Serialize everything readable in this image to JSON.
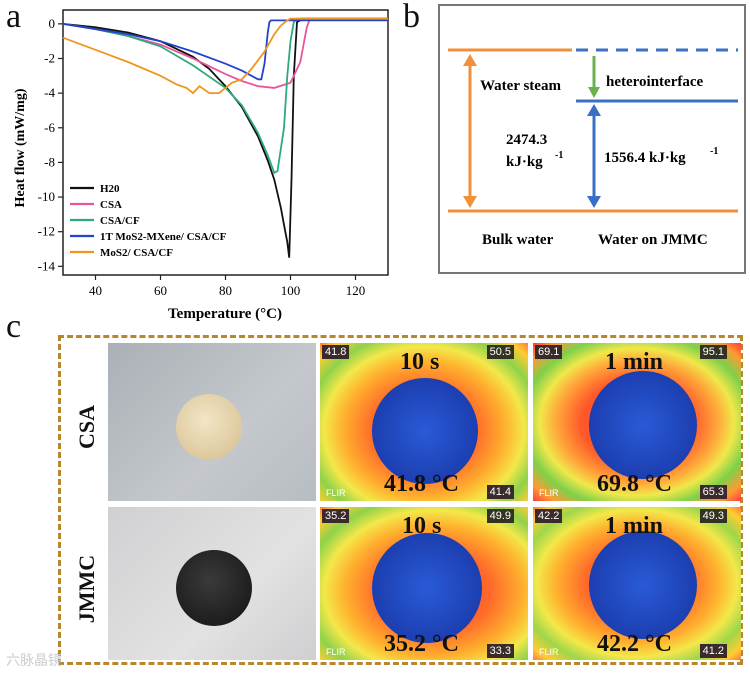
{
  "panels": {
    "a": "a",
    "b": "b",
    "c": "c"
  },
  "chart_data": {
    "type": "line",
    "title": "",
    "xlabel": "Temperature (°C)",
    "ylabel": "Heat flow (mW/mg)",
    "xlim": [
      30,
      130
    ],
    "ylim": [
      -14.5,
      0.8
    ],
    "xticks": [
      40,
      60,
      80,
      100,
      120
    ],
    "yticks": [
      0,
      -2,
      -4,
      -6,
      -8,
      -10,
      -12,
      -14
    ],
    "legend_position": "bottom-left",
    "series": [
      {
        "name": "H20",
        "color": "#111111",
        "x": [
          30,
          40,
          50,
          60,
          70,
          75,
          80,
          85,
          90,
          93,
          95,
          97,
          98,
          99,
          99.6,
          100.3,
          101,
          102,
          104,
          110,
          130
        ],
        "y": [
          0,
          -0.2,
          -0.5,
          -1.0,
          -1.9,
          -2.6,
          -3.6,
          -4.8,
          -6.5,
          -7.9,
          -9.0,
          -10.6,
          -11.6,
          -12.6,
          -13.5,
          -9.0,
          -3.0,
          0.1,
          0.3,
          0.3,
          0.3
        ]
      },
      {
        "name": "CSA",
        "color": "#e8559b",
        "x": [
          30,
          40,
          50,
          60,
          70,
          80,
          85,
          90,
          95,
          100,
          103,
          105,
          106,
          108,
          110,
          130
        ],
        "y": [
          0,
          -0.3,
          -0.7,
          -1.2,
          -2.0,
          -2.9,
          -3.3,
          -3.6,
          -3.7,
          -3.4,
          -2.2,
          -0.2,
          0.3,
          0.3,
          0.3,
          0.3
        ]
      },
      {
        "name": "CSA/CF",
        "color": "#2eaa7a",
        "x": [
          30,
          40,
          50,
          60,
          70,
          80,
          85,
          90,
          93,
          95,
          96,
          98,
          99,
          100,
          101,
          102,
          104,
          110,
          130
        ],
        "y": [
          0,
          -0.3,
          -0.7,
          -1.3,
          -2.4,
          -3.7,
          -4.7,
          -6.3,
          -7.6,
          -8.6,
          -8.5,
          -6.0,
          -3.0,
          -1.0,
          0.1,
          0.3,
          0.3,
          0.3,
          0.3
        ]
      },
      {
        "name": "1T MoS2-MXene/ CSA/CF",
        "color": "#2244cc",
        "x": [
          30,
          40,
          50,
          60,
          70,
          80,
          85,
          88,
          90,
          91,
          92,
          93,
          93.5,
          94,
          95,
          100,
          110,
          130
        ],
        "y": [
          0,
          -0.3,
          -0.6,
          -1.0,
          -1.6,
          -2.3,
          -2.7,
          -3.0,
          -3.2,
          -3.2,
          -2.3,
          -0.5,
          0.1,
          0.2,
          0.2,
          0.2,
          0.2,
          0.2
        ]
      },
      {
        "name": "MoS2/ CSA/CF",
        "color": "#f0961e",
        "x": [
          30,
          40,
          50,
          60,
          65,
          68,
          70,
          72,
          75,
          78,
          80,
          82,
          85,
          88,
          92,
          95,
          97,
          99,
          100,
          110,
          130
        ],
        "y": [
          -0.8,
          -1.5,
          -2.2,
          -3.0,
          -3.5,
          -3.7,
          -4.0,
          -3.6,
          -4.0,
          -4.0,
          -3.7,
          -3.4,
          -3.2,
          -2.6,
          -1.6,
          -0.6,
          -0.1,
          0.2,
          0.3,
          0.3,
          0.3
        ]
      }
    ]
  },
  "legend": [
    "H20",
    "CSA",
    "CSA/CF",
    "1T MoS2-MXene/ CSA/CF",
    "MoS2/ CSA/CF"
  ],
  "energy_diagram": {
    "water_steam": "Water steam",
    "heterointerface": "heterointerface",
    "left_value": "2474.3",
    "left_unit": "kJ·kg",
    "right_value": "1556.4 kJ·kg",
    "exponent": "-1",
    "bulk_water": "Bulk water",
    "water_on_jmmc": "Water on JMMC",
    "colors": {
      "orange": "#f0913a",
      "blue": "#3a6fc8",
      "green": "#6ab04c"
    }
  },
  "photos": {
    "rows": [
      "CSA",
      "JMMC"
    ],
    "thermal": [
      {
        "time": "10 s",
        "temp": "41.8 °C",
        "tag_min": "41.8",
        "tag_max": "50.5",
        "scale_low": "41.4",
        "flir": "FLIR"
      },
      {
        "time": "1 min",
        "temp": "69.8 °C",
        "tag_min": "69.1",
        "tag_max": "95.1",
        "scale_low": "65.3",
        "flir": "FLIR"
      },
      {
        "time": "10 s",
        "temp": "35.2 °C",
        "tag_min": "35.2",
        "tag_max": "49.9",
        "scale_low": "33.3",
        "flir": "FLIR"
      },
      {
        "time": "1 min",
        "temp": "42.2 °C",
        "tag_min": "42.2",
        "tag_max": "49.3",
        "scale_low": "41.2",
        "flir": "FLIR"
      }
    ]
  },
  "watermark": "六脉晶镜"
}
